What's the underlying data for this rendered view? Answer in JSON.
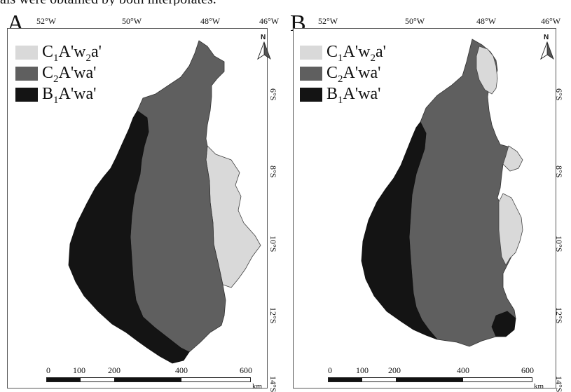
{
  "caption_fragment": "als were obtained by both interpolates.",
  "legend_colors": {
    "C1Awa": "#d9d9d9",
    "C2Awa": "#5f5f5f",
    "B1Awa": "#141414"
  },
  "panels": [
    {
      "letter": "A.",
      "lon_ticks": [
        "52°W",
        "50°W",
        "48°W",
        "46°W"
      ],
      "lat_ticks": [
        "6°S",
        "8°S",
        "10°S",
        "12°S",
        "14°S"
      ],
      "north_label": "N",
      "legend": [
        {
          "key": "C1Awa",
          "prefix": "C",
          "sub": "1",
          "mid": "A'w",
          "sub2": "2",
          "suffix": "a'"
        },
        {
          "key": "C2Awa",
          "prefix": "C",
          "sub": "2",
          "mid": "A'wa'",
          "sub2": "",
          "suffix": ""
        },
        {
          "key": "B1Awa",
          "prefix": "B",
          "sub": "1",
          "mid": "A'wa'",
          "sub2": "",
          "suffix": ""
        }
      ],
      "scale_numbers": [
        "0",
        "100",
        "200",
        "400",
        "600"
      ],
      "scale_unit": "km"
    },
    {
      "letter": "B.",
      "lon_ticks": [
        "52°W",
        "50°W",
        "48°W",
        "46°W"
      ],
      "lat_ticks": [
        "6°S",
        "8°S",
        "10°S",
        "12°S",
        "14°S"
      ],
      "north_label": "N",
      "legend": [
        {
          "key": "C1Awa",
          "prefix": "C",
          "sub": "1",
          "mid": "A'w",
          "sub2": "2",
          "suffix": "a'"
        },
        {
          "key": "C2Awa",
          "prefix": "C",
          "sub": "2",
          "mid": "A'wa'",
          "sub2": "",
          "suffix": ""
        },
        {
          "key": "B1Awa",
          "prefix": "B",
          "sub": "1",
          "mid": "A'wa'",
          "sub2": "",
          "suffix": ""
        }
      ],
      "scale_numbers": [
        "0",
        "100",
        "200",
        "400",
        "600"
      ],
      "scale_unit": "km"
    }
  ]
}
